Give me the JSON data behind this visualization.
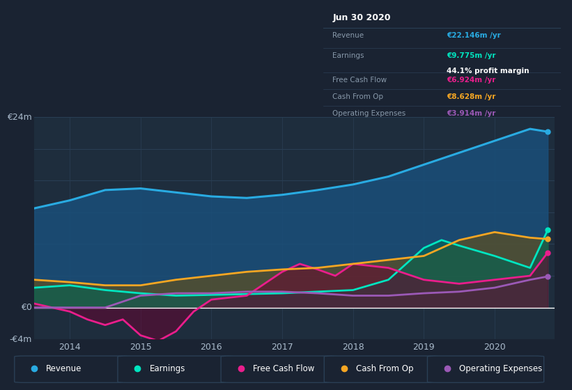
{
  "bg_color": "#1a2332",
  "plot_bg_color": "#1e2d3d",
  "ylim": [
    -4,
    24
  ],
  "xlim": [
    2013.5,
    2020.85
  ],
  "xticks": [
    2014,
    2015,
    2016,
    2017,
    2018,
    2019,
    2020
  ],
  "grid_color": "#2a3f55",
  "zero_line_color": "#ffffff",
  "series": {
    "Revenue": {
      "color": "#29abe2",
      "fill_color": "#1a4f7a",
      "fill_alpha": 0.85,
      "data_x": [
        2013.5,
        2014.0,
        2014.5,
        2015.0,
        2015.5,
        2016.0,
        2016.5,
        2017.0,
        2017.5,
        2018.0,
        2018.5,
        2019.0,
        2019.5,
        2020.0,
        2020.5,
        2020.75
      ],
      "data_y": [
        12.5,
        13.5,
        14.8,
        15.0,
        14.5,
        14.0,
        13.8,
        14.2,
        14.8,
        15.5,
        16.5,
        18.0,
        19.5,
        21.0,
        22.5,
        22.146
      ]
    },
    "Earnings": {
      "color": "#00e5c0",
      "fill_color": "#006655",
      "fill_alpha": 0.6,
      "data_x": [
        2013.5,
        2014.0,
        2014.5,
        2015.0,
        2015.5,
        2016.0,
        2016.5,
        2017.0,
        2017.5,
        2018.0,
        2018.5,
        2019.0,
        2019.25,
        2019.5,
        2020.0,
        2020.5,
        2020.75
      ],
      "data_y": [
        2.5,
        2.8,
        2.2,
        1.8,
        1.5,
        1.6,
        1.7,
        1.8,
        2.0,
        2.2,
        3.5,
        7.5,
        8.5,
        7.8,
        6.5,
        5.0,
        9.775
      ]
    },
    "Free Cash Flow": {
      "color": "#e91e8c",
      "fill_color": "#6b0030",
      "fill_alpha": 0.5,
      "data_x": [
        2013.5,
        2014.0,
        2014.25,
        2014.5,
        2014.75,
        2015.0,
        2015.25,
        2015.5,
        2015.75,
        2016.0,
        2016.5,
        2017.0,
        2017.25,
        2017.5,
        2017.75,
        2018.0,
        2018.5,
        2019.0,
        2019.5,
        2020.0,
        2020.5,
        2020.75
      ],
      "data_y": [
        0.5,
        -0.5,
        -1.5,
        -2.2,
        -1.5,
        -3.5,
        -4.2,
        -3.0,
        -0.5,
        1.0,
        1.5,
        4.5,
        5.5,
        4.8,
        4.0,
        5.5,
        5.0,
        3.5,
        3.0,
        3.5,
        4.0,
        6.924
      ]
    },
    "Cash From Op": {
      "color": "#f5a623",
      "fill_color": "#7a5200",
      "fill_alpha": 0.5,
      "data_x": [
        2013.5,
        2014.0,
        2014.5,
        2015.0,
        2015.5,
        2016.0,
        2016.5,
        2017.0,
        2017.5,
        2018.0,
        2018.5,
        2019.0,
        2019.5,
        2020.0,
        2020.5,
        2020.75
      ],
      "data_y": [
        3.5,
        3.2,
        2.8,
        2.8,
        3.5,
        4.0,
        4.5,
        4.8,
        5.0,
        5.5,
        6.0,
        6.5,
        8.5,
        9.5,
        8.8,
        8.628
      ]
    },
    "Operating Expenses": {
      "color": "#9b59b6",
      "fill_color": "#4a1a6b",
      "fill_alpha": 0.6,
      "data_x": [
        2013.5,
        2014.0,
        2014.5,
        2015.0,
        2015.5,
        2016.0,
        2016.5,
        2017.0,
        2017.5,
        2018.0,
        2018.5,
        2019.0,
        2019.5,
        2020.0,
        2020.5,
        2020.75
      ],
      "data_y": [
        0.0,
        0.0,
        0.0,
        1.5,
        1.8,
        1.8,
        2.0,
        2.0,
        1.8,
        1.5,
        1.5,
        1.8,
        2.0,
        2.5,
        3.5,
        3.914
      ]
    }
  },
  "info_box": {
    "date": "Jun 30 2020",
    "rows": [
      {
        "label": "Revenue",
        "value": "€22.146m /yr",
        "value_color": "#29abe2",
        "sublabel": "",
        "sublabel_color": ""
      },
      {
        "label": "Earnings",
        "value": "€9.775m /yr",
        "value_color": "#00e5c0",
        "sublabel": "44.1% profit margin",
        "sublabel_color": "#ffffff"
      },
      {
        "label": "Free Cash Flow",
        "value": "€6.924m /yr",
        "value_color": "#e91e8c",
        "sublabel": "",
        "sublabel_color": ""
      },
      {
        "label": "Cash From Op",
        "value": "€8.628m /yr",
        "value_color": "#f5a623",
        "sublabel": "",
        "sublabel_color": ""
      },
      {
        "label": "Operating Expenses",
        "value": "€3.914m /yr",
        "value_color": "#9b59b6",
        "sublabel": "",
        "sublabel_color": ""
      }
    ],
    "box_bg": "#0a0e1a",
    "box_border": "#2a3f55",
    "label_color": "#8899aa",
    "title_color": "#ffffff",
    "divider_color": "#2a3f55"
  },
  "legend": [
    {
      "label": "Revenue",
      "color": "#29abe2"
    },
    {
      "label": "Earnings",
      "color": "#00e5c0"
    },
    {
      "label": "Free Cash Flow",
      "color": "#e91e8c"
    },
    {
      "label": "Cash From Op",
      "color": "#f5a623"
    },
    {
      "label": "Operating Expenses",
      "color": "#9b59b6"
    }
  ],
  "legend_bg": "#1a2332",
  "legend_border": "#2a3f55",
  "tick_color": "#aabbcc",
  "ylabel_top": "€24m",
  "ylabel_zero": "€0",
  "ylabel_bottom": "-€4m"
}
